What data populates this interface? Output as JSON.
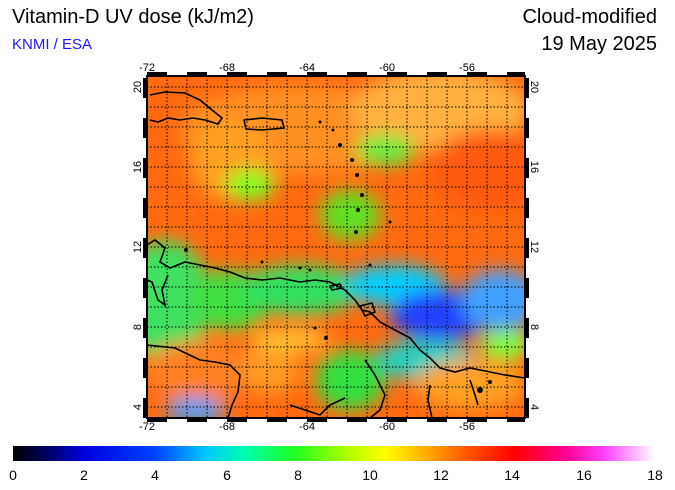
{
  "header": {
    "title": "Vitamin-D UV dose (kJ/m2)",
    "credit": "KNMI / ESA",
    "product": "Cloud-modified",
    "date": "19 May 2025"
  },
  "map": {
    "lon_range": [
      -72,
      -53
    ],
    "lat_range": [
      3.5,
      20.5
    ],
    "lon_ticks": [
      "-72",
      "-68",
      "-64",
      "-60",
      "-56"
    ],
    "lat_ticks": [
      "4",
      "8",
      "12",
      "16",
      "20"
    ],
    "grid": "dotted, every 2 degrees"
  },
  "colorbar": {
    "labels": [
      "0",
      "2",
      "4",
      "6",
      "8",
      "10",
      "12",
      "14",
      "16",
      "18"
    ],
    "colors": [
      "#000000",
      "#0000c0",
      "#0000ff",
      "#0080ff",
      "#00e0ff",
      "#00ff80",
      "#40ff00",
      "#c0ff00",
      "#ffff00",
      "#ffc000",
      "#ff8000",
      "#ff4000",
      "#ff0000",
      "#ff0080",
      "#ff00ff",
      "#ffb0ff",
      "#ffffff"
    ]
  }
}
